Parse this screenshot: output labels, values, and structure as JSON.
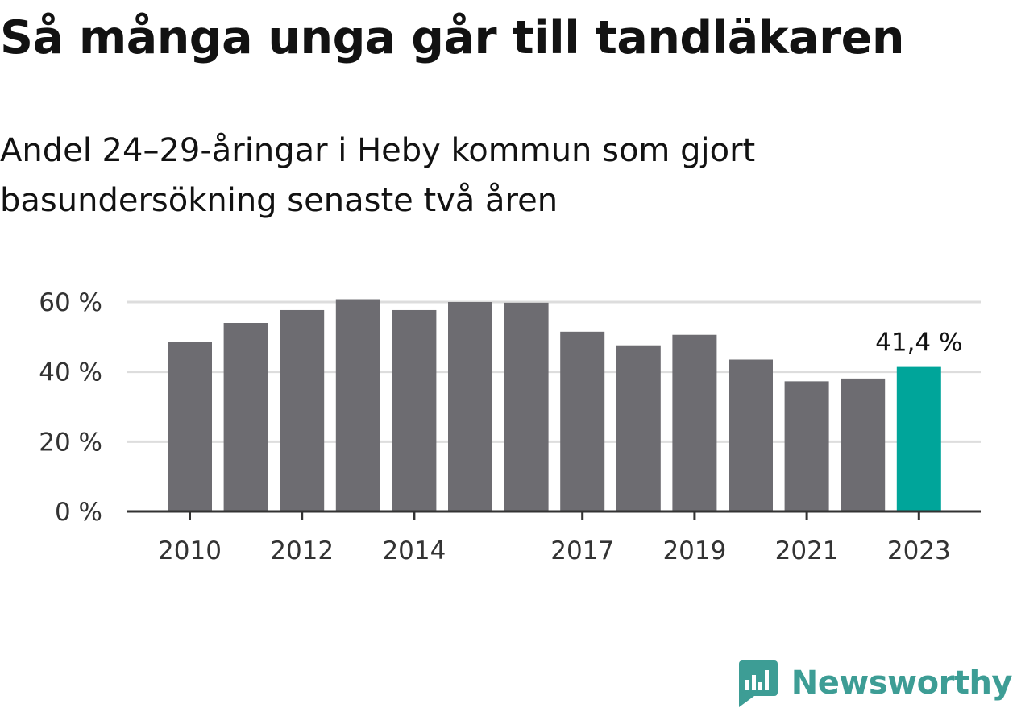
{
  "title": "Så många unga går till tandläkaren",
  "subtitle": "Andel 24–29-åringar i Heby kommun som gjort basundersökning senaste två åren",
  "logo": {
    "text": "Newsworthy",
    "icon": "newsworthy-logo-icon",
    "color": "#3d9d95"
  },
  "chart_data": {
    "type": "bar",
    "categories": [
      "2010",
      "2011",
      "2012",
      "2013",
      "2014",
      "2015",
      "2016",
      "2017",
      "2018",
      "2019",
      "2020",
      "2021",
      "2022",
      "2023"
    ],
    "values": [
      48.5,
      54,
      57.7,
      60.8,
      57.7,
      60,
      59.8,
      51.5,
      47.6,
      50.6,
      43.5,
      37.3,
      38.1,
      41.4
    ],
    "x_tick_labels": [
      "2010",
      "2012",
      "2014",
      "2017",
      "2019",
      "2021",
      "2023"
    ],
    "y_ticks": [
      0,
      20,
      40,
      60
    ],
    "y_tick_labels": [
      "0 %",
      "20 %",
      "40 %",
      "60 %"
    ],
    "ylim": [
      0,
      60
    ],
    "grid": true,
    "bar_color": "#6d6c71",
    "highlight_color": "#00a59a",
    "highlight_category": "2023",
    "annotation": {
      "category": "2023",
      "text": "41,4 %"
    }
  }
}
